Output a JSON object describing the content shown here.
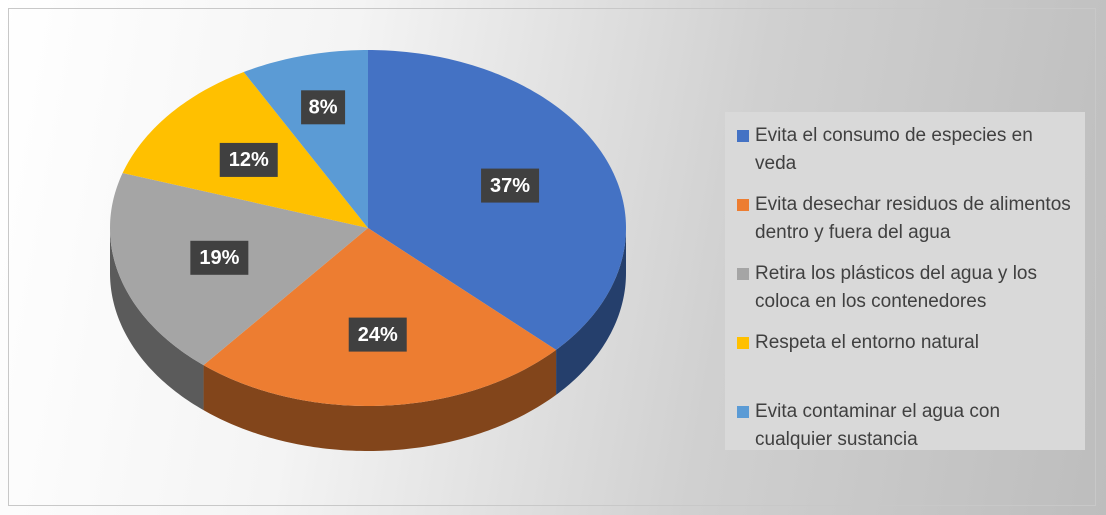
{
  "chart_data": {
    "type": "pie",
    "categories": [
      "Evita el consumo de especies en veda",
      "Evita desechar residuos de alimentos dentro y fuera del agua",
      "Retira los plásticos del agua y los coloca en los contenedores",
      "Respeta el entorno natural",
      "Evita contaminar el agua con cualquier sustancia"
    ],
    "values": [
      37,
      24,
      19,
      12,
      8
    ],
    "value_labels": [
      "37%",
      "24%",
      "19%",
      "12%",
      "8%"
    ],
    "colors": [
      "#4472c4",
      "#ed7d31",
      "#a5a5a5",
      "#ffc000",
      "#5b9bd5"
    ],
    "legend": "right"
  }
}
